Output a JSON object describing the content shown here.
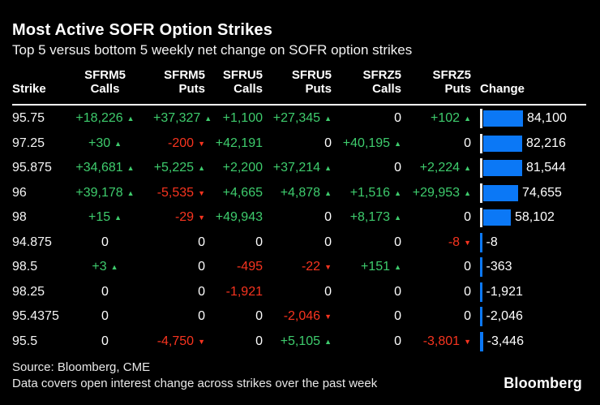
{
  "header": {
    "title": "Most Active SOFR Option Strikes",
    "subtitle": "Top 5 versus bottom 5 weekly net change on SOFR option strikes"
  },
  "table": {
    "columns": [
      {
        "line1": "",
        "line2": "Strike"
      },
      {
        "line1": "SFRM5",
        "line2": "Calls"
      },
      {
        "line1": "SFRM5",
        "line2": "Puts"
      },
      {
        "line1": "SFRU5",
        "line2": "Calls"
      },
      {
        "line1": "SFRU5",
        "line2": "Puts"
      },
      {
        "line1": "SFRZ5",
        "line2": "Calls"
      },
      {
        "line1": "SFRZ5",
        "line2": "Puts"
      },
      {
        "line1": "",
        "line2": "Change"
      }
    ],
    "rows": [
      {
        "strike": "95.75",
        "values": [
          {
            "text": "+18,226",
            "arrow": "up"
          },
          {
            "text": "+37,327",
            "arrow": "up"
          },
          {
            "text": "+1,100",
            "arrow": null
          },
          {
            "text": "+27,345",
            "arrow": "up"
          },
          {
            "text": "0",
            "arrow": null
          },
          {
            "text": "+102",
            "arrow": "up"
          }
        ],
        "change": {
          "value": 84100,
          "label": "84,100"
        }
      },
      {
        "strike": "97.25",
        "values": [
          {
            "text": "+30",
            "arrow": "up"
          },
          {
            "text": "-200",
            "arrow": "down"
          },
          {
            "text": "+42,191",
            "arrow": null
          },
          {
            "text": "0",
            "arrow": null
          },
          {
            "text": "+40,195",
            "arrow": "up"
          },
          {
            "text": "0",
            "arrow": null
          }
        ],
        "change": {
          "value": 82216,
          "label": "82,216"
        }
      },
      {
        "strike": "95.875",
        "values": [
          {
            "text": "+34,681",
            "arrow": "up"
          },
          {
            "text": "+5,225",
            "arrow": "up"
          },
          {
            "text": "+2,200",
            "arrow": null
          },
          {
            "text": "+37,214",
            "arrow": "up"
          },
          {
            "text": "0",
            "arrow": null
          },
          {
            "text": "+2,224",
            "arrow": "up"
          }
        ],
        "change": {
          "value": 81544,
          "label": "81,544"
        }
      },
      {
        "strike": "96",
        "values": [
          {
            "text": "+39,178",
            "arrow": "up"
          },
          {
            "text": "-5,535",
            "arrow": "down"
          },
          {
            "text": "+4,665",
            "arrow": null
          },
          {
            "text": "+4,878",
            "arrow": "up"
          },
          {
            "text": "+1,516",
            "arrow": "up"
          },
          {
            "text": "+29,953",
            "arrow": "up"
          }
        ],
        "change": {
          "value": 74655,
          "label": "74,655"
        }
      },
      {
        "strike": "98",
        "values": [
          {
            "text": "+15",
            "arrow": "up"
          },
          {
            "text": "-29",
            "arrow": "down"
          },
          {
            "text": "+49,943",
            "arrow": null
          },
          {
            "text": "0",
            "arrow": null
          },
          {
            "text": "+8,173",
            "arrow": "up"
          },
          {
            "text": "0",
            "arrow": null
          }
        ],
        "change": {
          "value": 58102,
          "label": "58,102"
        }
      },
      {
        "strike": "94.875",
        "values": [
          {
            "text": "0",
            "arrow": null
          },
          {
            "text": "0",
            "arrow": null
          },
          {
            "text": "0",
            "arrow": null
          },
          {
            "text": "0",
            "arrow": null
          },
          {
            "text": "0",
            "arrow": null
          },
          {
            "text": "-8",
            "arrow": "down"
          }
        ],
        "change": {
          "value": -8,
          "label": "-8"
        }
      },
      {
        "strike": "98.5",
        "values": [
          {
            "text": "+3",
            "arrow": "up"
          },
          {
            "text": "0",
            "arrow": null
          },
          {
            "text": "-495",
            "arrow": null
          },
          {
            "text": "-22",
            "arrow": "down"
          },
          {
            "text": "+151",
            "arrow": "up"
          },
          {
            "text": "0",
            "arrow": null
          }
        ],
        "change": {
          "value": -363,
          "label": "-363"
        }
      },
      {
        "strike": "98.25",
        "values": [
          {
            "text": "0",
            "arrow": null
          },
          {
            "text": "0",
            "arrow": null
          },
          {
            "text": "-1,921",
            "arrow": null
          },
          {
            "text": "0",
            "arrow": null
          },
          {
            "text": "0",
            "arrow": null
          },
          {
            "text": "0",
            "arrow": null
          }
        ],
        "change": {
          "value": -1921,
          "label": "-1,921"
        }
      },
      {
        "strike": "95.4375",
        "values": [
          {
            "text": "0",
            "arrow": null
          },
          {
            "text": "0",
            "arrow": null
          },
          {
            "text": "0",
            "arrow": null
          },
          {
            "text": "-2,046",
            "arrow": "down"
          },
          {
            "text": "0",
            "arrow": null
          },
          {
            "text": "0",
            "arrow": null
          }
        ],
        "change": {
          "value": -2046,
          "label": "-2,046"
        }
      },
      {
        "strike": "95.5",
        "values": [
          {
            "text": "0",
            "arrow": null
          },
          {
            "text": "-4,750",
            "arrow": "down"
          },
          {
            "text": "0",
            "arrow": null
          },
          {
            "text": "+5,105",
            "arrow": "up"
          },
          {
            "text": "0",
            "arrow": null
          },
          {
            "text": "-3,801",
            "arrow": "down"
          }
        ],
        "change": {
          "value": -3446,
          "label": "-3,446"
        }
      }
    ]
  },
  "chart_data": {
    "type": "bar",
    "orientation": "horizontal",
    "categories": [
      "95.75",
      "97.25",
      "95.875",
      "96",
      "98",
      "94.875",
      "98.5",
      "98.25",
      "95.4375",
      "95.5"
    ],
    "values": [
      84100,
      82216,
      81544,
      74655,
      58102,
      -8,
      -363,
      -1921,
      -2046,
      -3446
    ],
    "series_label": "Change",
    "title": "Most Active SOFR Option Strikes",
    "subtitle": "Top 5 versus bottom 5 weekly net change on SOFR option strikes",
    "xlabel": "Change",
    "ylabel": "Strike",
    "xlim": [
      0,
      84100
    ],
    "grid": false,
    "legend": false,
    "bar_color": "#0b78f6"
  },
  "footer": {
    "source": "Source: Bloomberg, CME",
    "note": "Data covers open interest change across strikes over the past week",
    "brand": "Bloomberg"
  },
  "colors": {
    "positive": "#3ecc6d",
    "negative": "#f8341f",
    "bar_blue": "#0b78f6",
    "axis_tick": "#f0f0f0",
    "background": "#000000",
    "text": "#ffffff"
  }
}
